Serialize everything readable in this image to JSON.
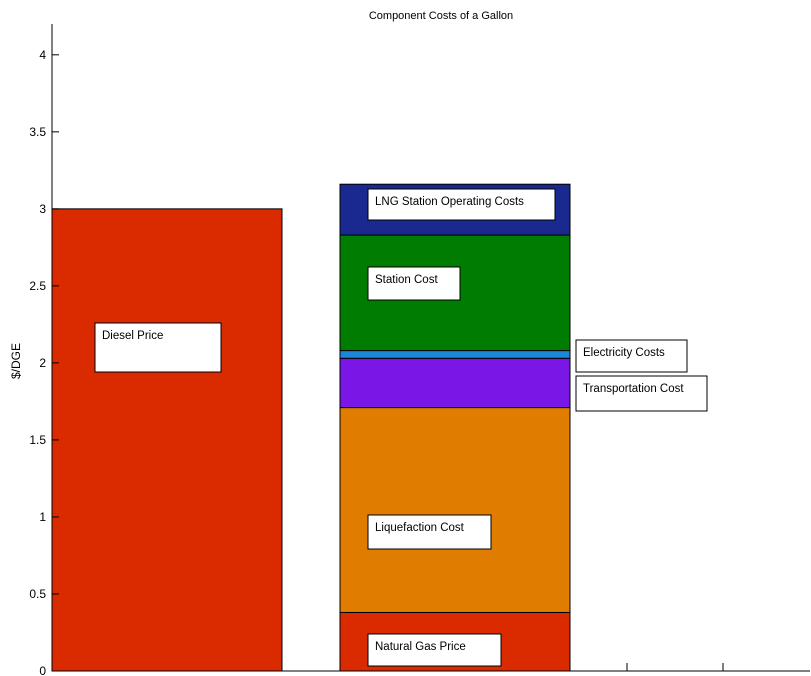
{
  "chart_data": {
    "type": "bar",
    "stacked": true,
    "title": "Component Costs of a Gallon",
    "xlabel": "",
    "ylabel": "$/DGE",
    "ylim": [
      0,
      4.2
    ],
    "yticks": [
      "0",
      "0.5",
      "1",
      "1.5",
      "2",
      "2.5",
      "3",
      "3.5",
      "4"
    ],
    "grid": false,
    "bars": [
      {
        "segments": [
          {
            "label": "Diesel Price",
            "value": 3.0,
            "color": "#d92a00"
          }
        ]
      },
      {
        "segments": [
          {
            "label": "Natural Gas Price",
            "value": 0.38,
            "color": "#d92a00"
          },
          {
            "label": "Liquefaction Cost",
            "value": 1.33,
            "color": "#e07c00"
          },
          {
            "label": "Transportation Cost",
            "value": 0.32,
            "color": "#7a16e6"
          },
          {
            "label": "Electricity Costs",
            "value": 0.05,
            "color": "#1c86d6"
          },
          {
            "label": "Station Cost",
            "value": 0.75,
            "color": "#007c00"
          },
          {
            "label": "LNG Station Operating Costs",
            "value": 0.33,
            "color": "#19298f"
          }
        ]
      }
    ]
  }
}
